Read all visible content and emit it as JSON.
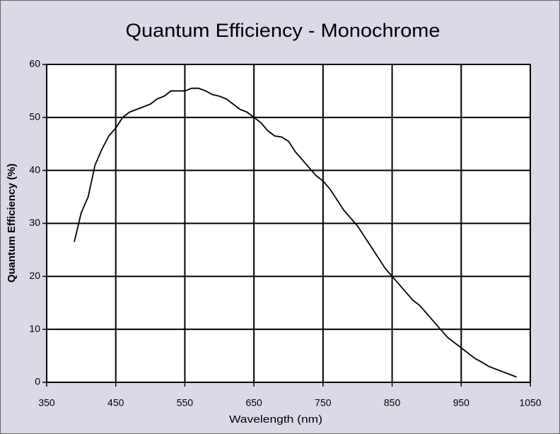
{
  "chart_data": {
    "type": "line",
    "title": "Quantum Efficiency - Monochrome",
    "x_label": "Wavelength (nm)",
    "y_label": "Quantum Efficiency (%)",
    "x": [
      390,
      400,
      410,
      420,
      430,
      440,
      450,
      460,
      470,
      480,
      490,
      500,
      510,
      520,
      530,
      540,
      550,
      560,
      570,
      580,
      590,
      600,
      610,
      620,
      630,
      640,
      650,
      660,
      670,
      680,
      690,
      700,
      710,
      720,
      730,
      740,
      750,
      760,
      770,
      780,
      790,
      800,
      810,
      820,
      830,
      840,
      850,
      860,
      870,
      880,
      890,
      900,
      910,
      920,
      930,
      940,
      950,
      960,
      970,
      980,
      990,
      1000,
      1010,
      1020,
      1030
    ],
    "series": [
      {
        "name": "Monochrome",
        "color": "#000000",
        "values": [
          26.5,
          32,
          35,
          41,
          44,
          46.5,
          48,
          50,
          51,
          51.5,
          52,
          52.5,
          53.5,
          54,
          55,
          55,
          55,
          55.5,
          55.5,
          55,
          54.3,
          54,
          53.5,
          52.5,
          51.5,
          51,
          50,
          49,
          47.5,
          46.5,
          46.3,
          45.5,
          43.5,
          42,
          40.5,
          39,
          38,
          36.5,
          34.5,
          32.5,
          31,
          29.5,
          27.5,
          25.5,
          23.5,
          21.5,
          20,
          18.5,
          17,
          15.5,
          14.5,
          13,
          11.5,
          10,
          8.5,
          7.5,
          6.5,
          5.5,
          4.5,
          3.8,
          3,
          2.5,
          2,
          1.5,
          1
        ]
      }
    ],
    "xlim": [
      350,
      1050
    ],
    "xticks": [
      350,
      450,
      550,
      650,
      750,
      850,
      950,
      1050
    ],
    "ylim": [
      0,
      60
    ],
    "yticks": [
      0,
      10,
      20,
      30,
      40,
      50,
      60
    ],
    "grid": true
  }
}
